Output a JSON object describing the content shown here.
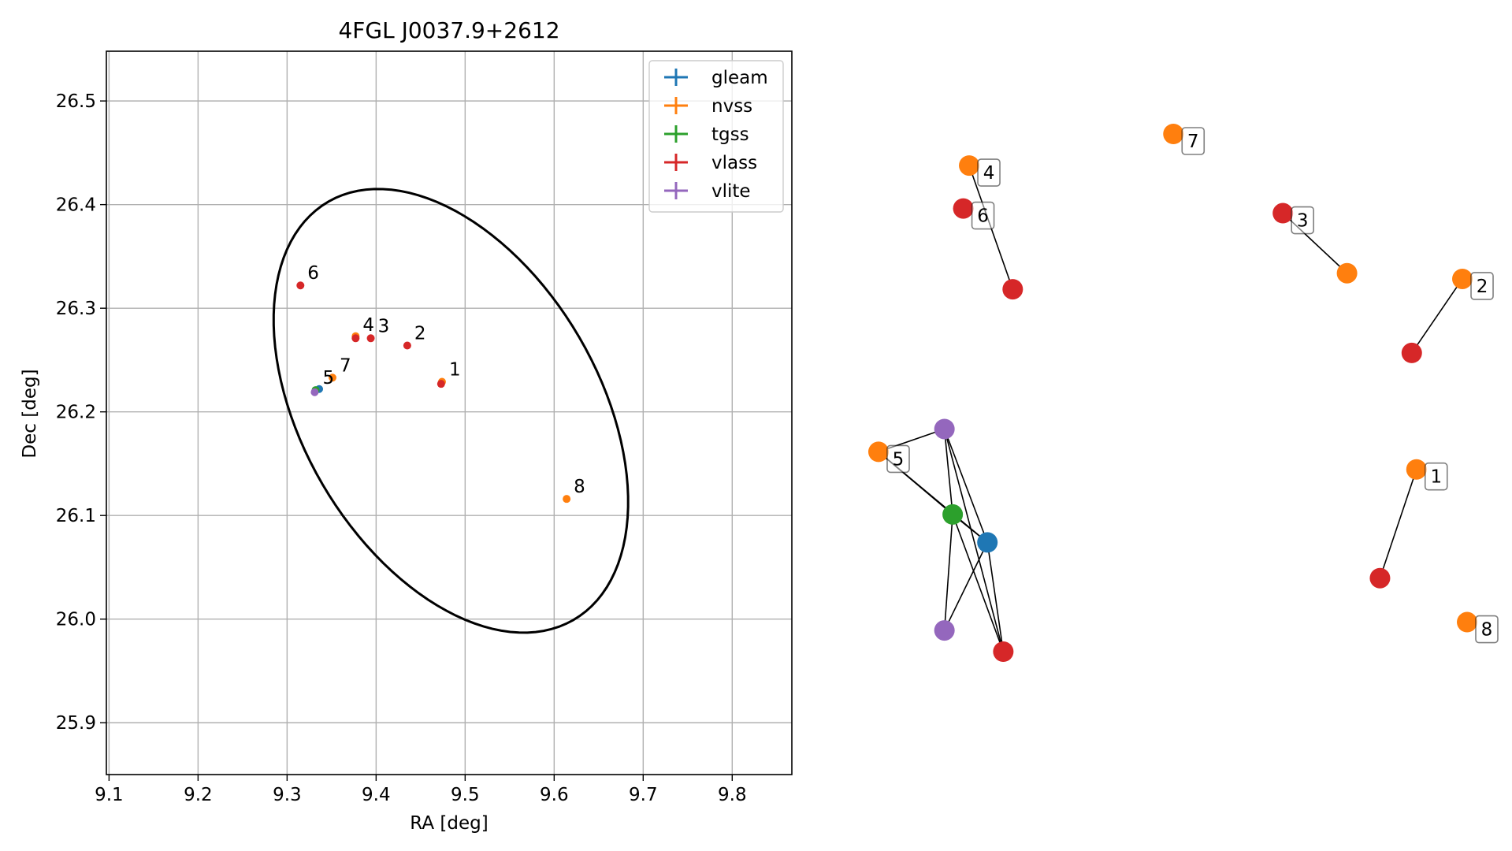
{
  "chart_data": [
    {
      "type": "scatter",
      "title": "4FGL J0037.9+2612",
      "xlabel": "RA [deg]",
      "ylabel": "Dec [deg]",
      "xlim": [
        9.097,
        9.867
      ],
      "ylim": [
        25.85,
        26.548
      ],
      "xticks": [
        "9.1",
        "9.2",
        "9.3",
        "9.4",
        "9.5",
        "9.6",
        "9.7",
        "9.8"
      ],
      "yticks": [
        "25.9",
        "26.0",
        "26.1",
        "26.2",
        "26.3",
        "26.4",
        "26.5"
      ],
      "grid": true,
      "legend_position": "top-right",
      "legend": [
        "gleam",
        "nvss",
        "tgss",
        "vlass",
        "vlite"
      ],
      "colors": {
        "gleam": "#1f77b4",
        "nvss": "#ff7f0e",
        "tgss": "#2ca02c",
        "vlass": "#d62728",
        "vlite": "#9467bd"
      },
      "series": [
        {
          "name": "gleam",
          "points": [
            {
              "x": 9.336,
              "y": 26.222
            }
          ]
        },
        {
          "name": "nvss",
          "points": [
            {
              "x": 9.474,
              "y": 26.229
            },
            {
              "x": 9.351,
              "y": 26.233
            },
            {
              "x": 9.614,
              "y": 26.116
            },
            {
              "x": 9.377,
              "y": 26.273
            }
          ]
        },
        {
          "name": "tgss",
          "points": [
            {
              "x": 9.332,
              "y": 26.221
            }
          ]
        },
        {
          "name": "vlass",
          "points": [
            {
              "x": 9.473,
              "y": 26.227
            },
            {
              "x": 9.435,
              "y": 26.264
            },
            {
              "x": 9.394,
              "y": 26.271
            },
            {
              "x": 9.377,
              "y": 26.271
            },
            {
              "x": 9.315,
              "y": 26.322
            }
          ]
        },
        {
          "name": "vlite",
          "points": [
            {
              "x": 9.331,
              "y": 26.219
            }
          ]
        }
      ],
      "point_labels": [
        {
          "text": "1",
          "x": 9.474,
          "y": 26.229
        },
        {
          "text": "2",
          "x": 9.435,
          "y": 26.264
        },
        {
          "text": "3",
          "x": 9.394,
          "y": 26.271
        },
        {
          "text": "4",
          "x": 9.377,
          "y": 26.272
        },
        {
          "text": "5",
          "x": 9.332,
          "y": 26.221
        },
        {
          "text": "6",
          "x": 9.315,
          "y": 26.322
        },
        {
          "text": "7",
          "x": 9.351,
          "y": 26.233
        },
        {
          "text": "8",
          "x": 9.614,
          "y": 26.116
        }
      ],
      "ellipse": {
        "center": [
          9.484,
          26.201
        ],
        "semi_major": 0.246,
        "semi_minor": 0.158,
        "angle_deg": -50
      }
    },
    {
      "type": "network",
      "groups": [
        {
          "label": "1",
          "nodes": [
            {
              "id": "a",
              "catalog": "nvss",
              "x": 0.914,
              "y": 0.648
            },
            {
              "id": "b",
              "catalog": "vlass",
              "x": 0.852,
              "y": 0.858
            }
          ],
          "edges": [
            [
              "a",
              "b"
            ]
          ]
        },
        {
          "label": "2",
          "nodes": [
            {
              "id": "a",
              "catalog": "nvss",
              "x": 0.992,
              "y": 0.28
            },
            {
              "id": "b",
              "catalog": "vlass",
              "x": 0.906,
              "y": 0.423
            }
          ],
          "edges": [
            [
              "a",
              "b"
            ]
          ]
        },
        {
          "label": "3",
          "nodes": [
            {
              "id": "a",
              "catalog": "vlass",
              "x": 0.687,
              "y": 0.153
            },
            {
              "id": "b",
              "catalog": "nvss",
              "x": 0.796,
              "y": 0.269
            }
          ],
          "edges": [
            [
              "a",
              "b"
            ]
          ]
        },
        {
          "label": "4",
          "nodes": [
            {
              "id": "a",
              "catalog": "nvss",
              "x": 0.154,
              "y": 0.061
            },
            {
              "id": "b",
              "catalog": "vlass",
              "x": 0.228,
              "y": 0.3
            }
          ],
          "edges": [
            [
              "a",
              "b"
            ]
          ]
        },
        {
          "label": "5",
          "nodes": [
            {
              "id": "nv",
              "catalog": "nvss",
              "x": 0.0,
              "y": 0.614
            },
            {
              "id": "vl1",
              "catalog": "vlite",
              "x": 0.112,
              "y": 0.57
            },
            {
              "id": "tg",
              "catalog": "tgss",
              "x": 0.126,
              "y": 0.735
            },
            {
              "id": "gl",
              "catalog": "gleam",
              "x": 0.185,
              "y": 0.789
            },
            {
              "id": "vl2",
              "catalog": "vlite",
              "x": 0.112,
              "y": 0.959
            },
            {
              "id": "va",
              "catalog": "vlass",
              "x": 0.212,
              "y": 1.0
            }
          ],
          "edges": [
            [
              "nv",
              "vl1"
            ],
            [
              "nv",
              "tg"
            ],
            [
              "nv",
              "gl"
            ],
            [
              "vl1",
              "tg"
            ],
            [
              "vl1",
              "gl"
            ],
            [
              "vl1",
              "va"
            ],
            [
              "tg",
              "gl"
            ],
            [
              "tg",
              "vl2"
            ],
            [
              "tg",
              "va"
            ],
            [
              "gl",
              "vl2"
            ],
            [
              "gl",
              "va"
            ]
          ]
        },
        {
          "label": "6",
          "nodes": [
            {
              "id": "a",
              "catalog": "vlass",
              "x": 0.144,
              "y": 0.144
            }
          ],
          "edges": []
        },
        {
          "label": "7",
          "nodes": [
            {
              "id": "a",
              "catalog": "nvss",
              "x": 0.501,
              "y": 0.0
            }
          ],
          "edges": []
        },
        {
          "label": "8",
          "nodes": [
            {
              "id": "a",
              "catalog": "nvss",
              "x": 1.0,
              "y": 0.943
            }
          ],
          "edges": []
        }
      ]
    }
  ]
}
